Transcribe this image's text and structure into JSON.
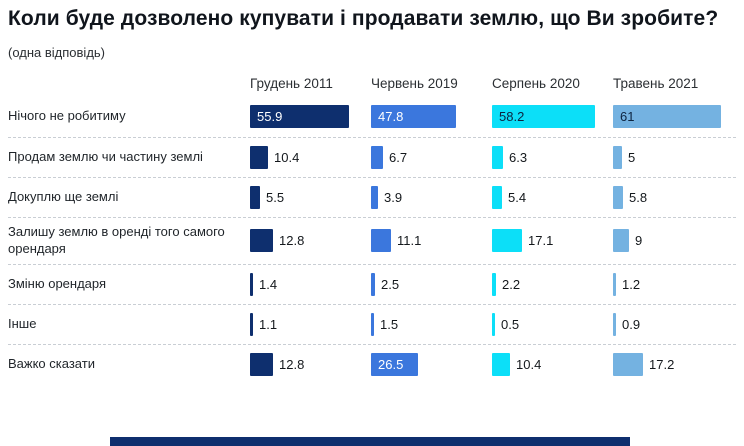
{
  "page": {
    "title": "Коли буде дозволено купувати і продавати землю, що Ви зробите?",
    "subtitle": "(одна відповідь)"
  },
  "colors": {
    "footer_bar": "#0e2f6e",
    "separator": "#c9ced4"
  },
  "chart_data": {
    "type": "bar",
    "orientation": "horizontal",
    "title": "Коли буде дозволено купувати і продавати землю, що Ви зробите?",
    "subtitle": "(одна відповідь)",
    "value_axis_max": 61,
    "inside_label_threshold": 25,
    "categories": [
      "Нічого не робитиму",
      "Продам землю чи частину землі",
      "Докуплю ще землі",
      "Залишу землю в оренді того самого орендаря",
      "Зміню орендаря",
      "Інше",
      "Важко сказати"
    ],
    "series": [
      {
        "name": "Грудень 2011",
        "color": "#0e2f6e",
        "label_color_inside": "#ffffff",
        "values": [
          55.9,
          10.4,
          5.5,
          12.8,
          1.4,
          1.1,
          12.8
        ]
      },
      {
        "name": "Червень 2019",
        "color": "#3b77dd",
        "label_color_inside": "#ffffff",
        "values": [
          47.8,
          6.7,
          3.9,
          11.1,
          2.5,
          1.5,
          26.5
        ]
      },
      {
        "name": "Серпень 2020",
        "color": "#0cdff8",
        "label_color_inside": "#0d2440",
        "values": [
          58.2,
          6.3,
          5.4,
          17.1,
          2.2,
          0.5,
          10.4
        ]
      },
      {
        "name": "Травень 2021",
        "color": "#74b2e1",
        "label_color_inside": "#0d2440",
        "values": [
          61,
          5,
          5.8,
          9,
          1.2,
          0.9,
          17.2
        ]
      }
    ]
  }
}
